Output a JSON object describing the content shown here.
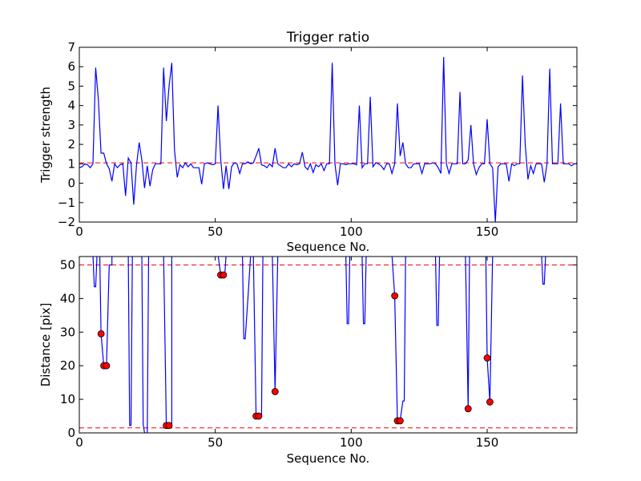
{
  "chart_data": [
    {
      "type": "line",
      "title": "Trigger ratio",
      "xlabel": "Sequence No.",
      "ylabel": "Trigger strength",
      "xlim": [
        0,
        183
      ],
      "ylim": [
        -2,
        7
      ],
      "xticks": [
        0,
        50,
        100,
        150
      ],
      "yticks": [
        -2,
        -1,
        0,
        1,
        2,
        3,
        4,
        5,
        6,
        7
      ],
      "ytick_labels": [
        "−2",
        "−1",
        "0",
        "1",
        "2",
        "3",
        "4",
        "5",
        "6",
        "7"
      ],
      "xtick_labels": [
        "0",
        "50",
        "100",
        "150"
      ],
      "grid": false,
      "threshold": {
        "y": 1.05,
        "color": "#ff0000",
        "style": "dashed"
      },
      "series": [
        {
          "color": "#0000ff",
          "values": [
            0.8,
            0.85,
            1.0,
            0.95,
            0.8,
            1.0,
            5.95,
            4.3,
            1.55,
            1.55,
            1.0,
            0.75,
            0.1,
            1.0,
            0.8,
            0.95,
            1.0,
            -0.65,
            1.3,
            1.05,
            -1.1,
            0.9,
            2.1,
            1.2,
            -0.25,
            0.9,
            -0.15,
            0.7,
            1.0,
            1.0,
            1.0,
            5.95,
            3.2,
            5.0,
            6.2,
            1.7,
            0.3,
            0.95,
            0.8,
            1.05,
            0.85,
            1.0,
            0.8,
            0.8,
            0.8,
            -0.05,
            1.0,
            1.05,
            1.0,
            0.95,
            1.0,
            4.0,
            1.2,
            -0.3,
            0.9,
            -0.3,
            0.85,
            1.05,
            1.0,
            0.5,
            1.0,
            1.0,
            1.1,
            1.0,
            1.05,
            1.4,
            1.8,
            0.95,
            0.9,
            0.8,
            1.0,
            0.85,
            1.8,
            1.0,
            0.9,
            0.8,
            0.8,
            1.0,
            0.85,
            1.0,
            0.95,
            1.0,
            1.6,
            0.85,
            0.7,
            1.0,
            0.55,
            0.95,
            0.85,
            1.0,
            0.65,
            1.0,
            1.0,
            6.2,
            1.0,
            -0.1,
            1.0,
            1.0,
            0.95,
            1.0,
            1.0,
            1.0,
            0.95,
            4.0,
            0.8,
            1.0,
            1.0,
            4.45,
            0.85,
            1.05,
            1.0,
            0.9,
            0.7,
            1.0,
            1.0,
            0.5,
            1.0,
            4.1,
            1.4,
            2.1,
            1.0,
            0.8,
            0.8,
            1.0,
            1.0,
            1.0,
            0.5,
            1.0,
            1.0,
            1.0,
            1.05,
            1.0,
            0.8,
            0.5,
            6.5,
            1.0,
            0.5,
            1.0,
            1.0,
            1.0,
            4.7,
            1.0,
            1.0,
            1.2,
            3.0,
            1.0,
            0.45,
            0.8,
            1.0,
            1.0,
            3.3,
            1.0,
            0.8,
            -2.0,
            0.85,
            1.0,
            1.0,
            1.0,
            0.1,
            1.0,
            0.9,
            1.0,
            1.0,
            5.55,
            2.0,
            0.2,
            0.9,
            0.5,
            1.0,
            1.0,
            1.0,
            0.05,
            1.0,
            5.9,
            1.0,
            1.0,
            1.0,
            4.1,
            1.0,
            1.0,
            1.0,
            0.9,
            1.0,
            1.0,
            1.0,
            0.5
          ]
        }
      ]
    },
    {
      "type": "line",
      "title": "",
      "xlabel": "Sequence No.",
      "ylabel": "Distance [pix]",
      "xlim": [
        0,
        183
      ],
      "ylim": [
        0,
        52.5
      ],
      "xticks": [
        0,
        50,
        100,
        150
      ],
      "yticks": [
        0,
        10,
        20,
        30,
        40,
        50
      ],
      "xtick_labels": [
        "0",
        "50",
        "100",
        "150"
      ],
      "ytick_labels": [
        "0",
        "10",
        "20",
        "30",
        "40",
        "50"
      ],
      "grid": false,
      "thresholds": [
        {
          "y": 50,
          "color": "#ff0000",
          "style": "dashed"
        },
        {
          "y": 1.5,
          "color": "#ff0000",
          "style": "dashed"
        }
      ],
      "series": [
        {
          "color": "#0000ff",
          "x": [
            5,
            5.5,
            6,
            6.5,
            7.5,
            8,
            9,
            10,
            10.5,
            11,
            11,
            12,
            12,
            18,
            18.5,
            19,
            19.5,
            23,
            23.5,
            24,
            25,
            25.5,
            31,
            32,
            32.5,
            33,
            34,
            34,
            51,
            52,
            53,
            53.5,
            54,
            60,
            60.5,
            61,
            62,
            63,
            64,
            65,
            66,
            67,
            67.5,
            71,
            72,
            73,
            73.5,
            98,
            98.5,
            99,
            99.5,
            104,
            104.5,
            105,
            105.5,
            115,
            116,
            117,
            118,
            119,
            119.5,
            120,
            131,
            131.5,
            132,
            132.5,
            142,
            143,
            143.5,
            149.5,
            150,
            151,
            152,
            170,
            170.5,
            171,
            171.5
          ],
          "values": [
            53,
            43.5,
            43.5,
            53,
            53,
            29.5,
            20,
            20,
            35,
            50,
            50,
            50,
            53,
            53,
            2.2,
            2.2,
            53,
            53,
            2.5,
            0,
            0,
            53,
            53,
            2.2,
            2.2,
            2.2,
            2.2,
            53,
            53,
            47,
            47,
            47,
            53,
            53,
            28,
            28,
            40,
            53,
            53,
            5,
            5,
            5,
            53,
            53,
            12.3,
            53,
            53,
            53,
            32.5,
            32.5,
            53,
            53,
            32.5,
            32.5,
            53,
            53,
            40.8,
            3.6,
            3.6,
            9.5,
            9.5,
            53,
            53,
            32,
            32,
            53,
            53,
            7.2,
            53,
            53,
            22.3,
            9.2,
            53,
            53,
            44.3,
            44.3,
            53
          ]
        }
      ],
      "markers": {
        "color": "#ff0000",
        "x": [
          8,
          9,
          10,
          32,
          33,
          52,
          53,
          65,
          66,
          72,
          116,
          117,
          118,
          143,
          150,
          151
        ],
        "y": [
          29.5,
          20,
          20,
          2.2,
          2.2,
          47,
          47,
          5,
          5,
          12.3,
          40.8,
          3.6,
          3.6,
          7.2,
          22.3,
          9.2
        ]
      }
    }
  ]
}
